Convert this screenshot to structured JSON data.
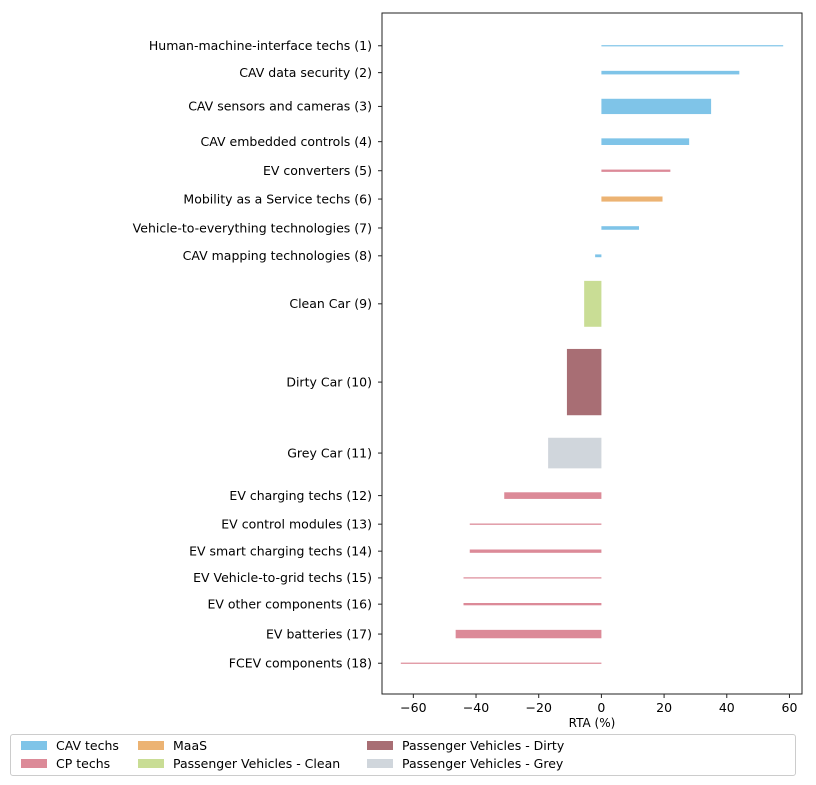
{
  "chart_data": {
    "type": "bar",
    "orientation": "horizontal",
    "xlabel": "RTA (%)",
    "xlim": [
      -70,
      64
    ],
    "xticks": [
      -60,
      -40,
      -20,
      0,
      20,
      40,
      60
    ],
    "grid": false,
    "legend_position": "bottom",
    "categories": [
      "Human-machine-interface techs (1)",
      "CAV data security (2)",
      "CAV sensors and cameras (3)",
      "CAV embedded controls (4)",
      "EV converters (5)",
      "Mobility as a Service techs (6)",
      "Vehicle-to-everything technologies (7)",
      "CAV mapping technologies (8)",
      "Clean Car (9)",
      "Dirty Car (10)",
      "Grey Car (11)",
      "EV charging techs (12)",
      "EV control modules (13)",
      "EV smart charging techs (14)",
      "EV Vehicle-to-grid techs (15)",
      "EV other components (16)",
      "EV batteries (17)",
      "FCEV components (18)"
    ],
    "values": [
      58,
      44,
      35,
      28,
      22,
      19.5,
      12,
      -2,
      -5.5,
      -11,
      -17,
      -31,
      -42,
      -42,
      -44,
      -44,
      -46.5,
      -64
    ],
    "groups": [
      "CAV techs",
      "CAV techs",
      "CAV techs",
      "CAV techs",
      "CP techs",
      "MaaS",
      "CAV techs",
      "CAV techs",
      "Passenger Vehicles - Clean",
      "Passenger Vehicles - Dirty",
      "Passenger Vehicles - Grey",
      "CP techs",
      "CP techs",
      "CP techs",
      "CP techs",
      "CP techs",
      "CP techs",
      "CP techs"
    ],
    "relative_weight": [
      0.3,
      1.4,
      6.0,
      2.6,
      0.9,
      2.0,
      1.4,
      1.1,
      18,
      26,
      12,
      2.6,
      0.5,
      1.3,
      0.3,
      0.9,
      3.3,
      0.3
    ],
    "series": [
      {
        "name": "CAV techs",
        "color": "#7fc4e8"
      },
      {
        "name": "CP techs",
        "color": "#dc8a98"
      },
      {
        "name": "MaaS",
        "color": "#ecb373"
      },
      {
        "name": "Passenger Vehicles - Clean",
        "color": "#c9dd95"
      },
      {
        "name": "Passenger Vehicles - Dirty",
        "color": "#a86e74"
      },
      {
        "name": "Passenger Vehicles - Grey",
        "color": "#d0d6dc"
      }
    ]
  }
}
